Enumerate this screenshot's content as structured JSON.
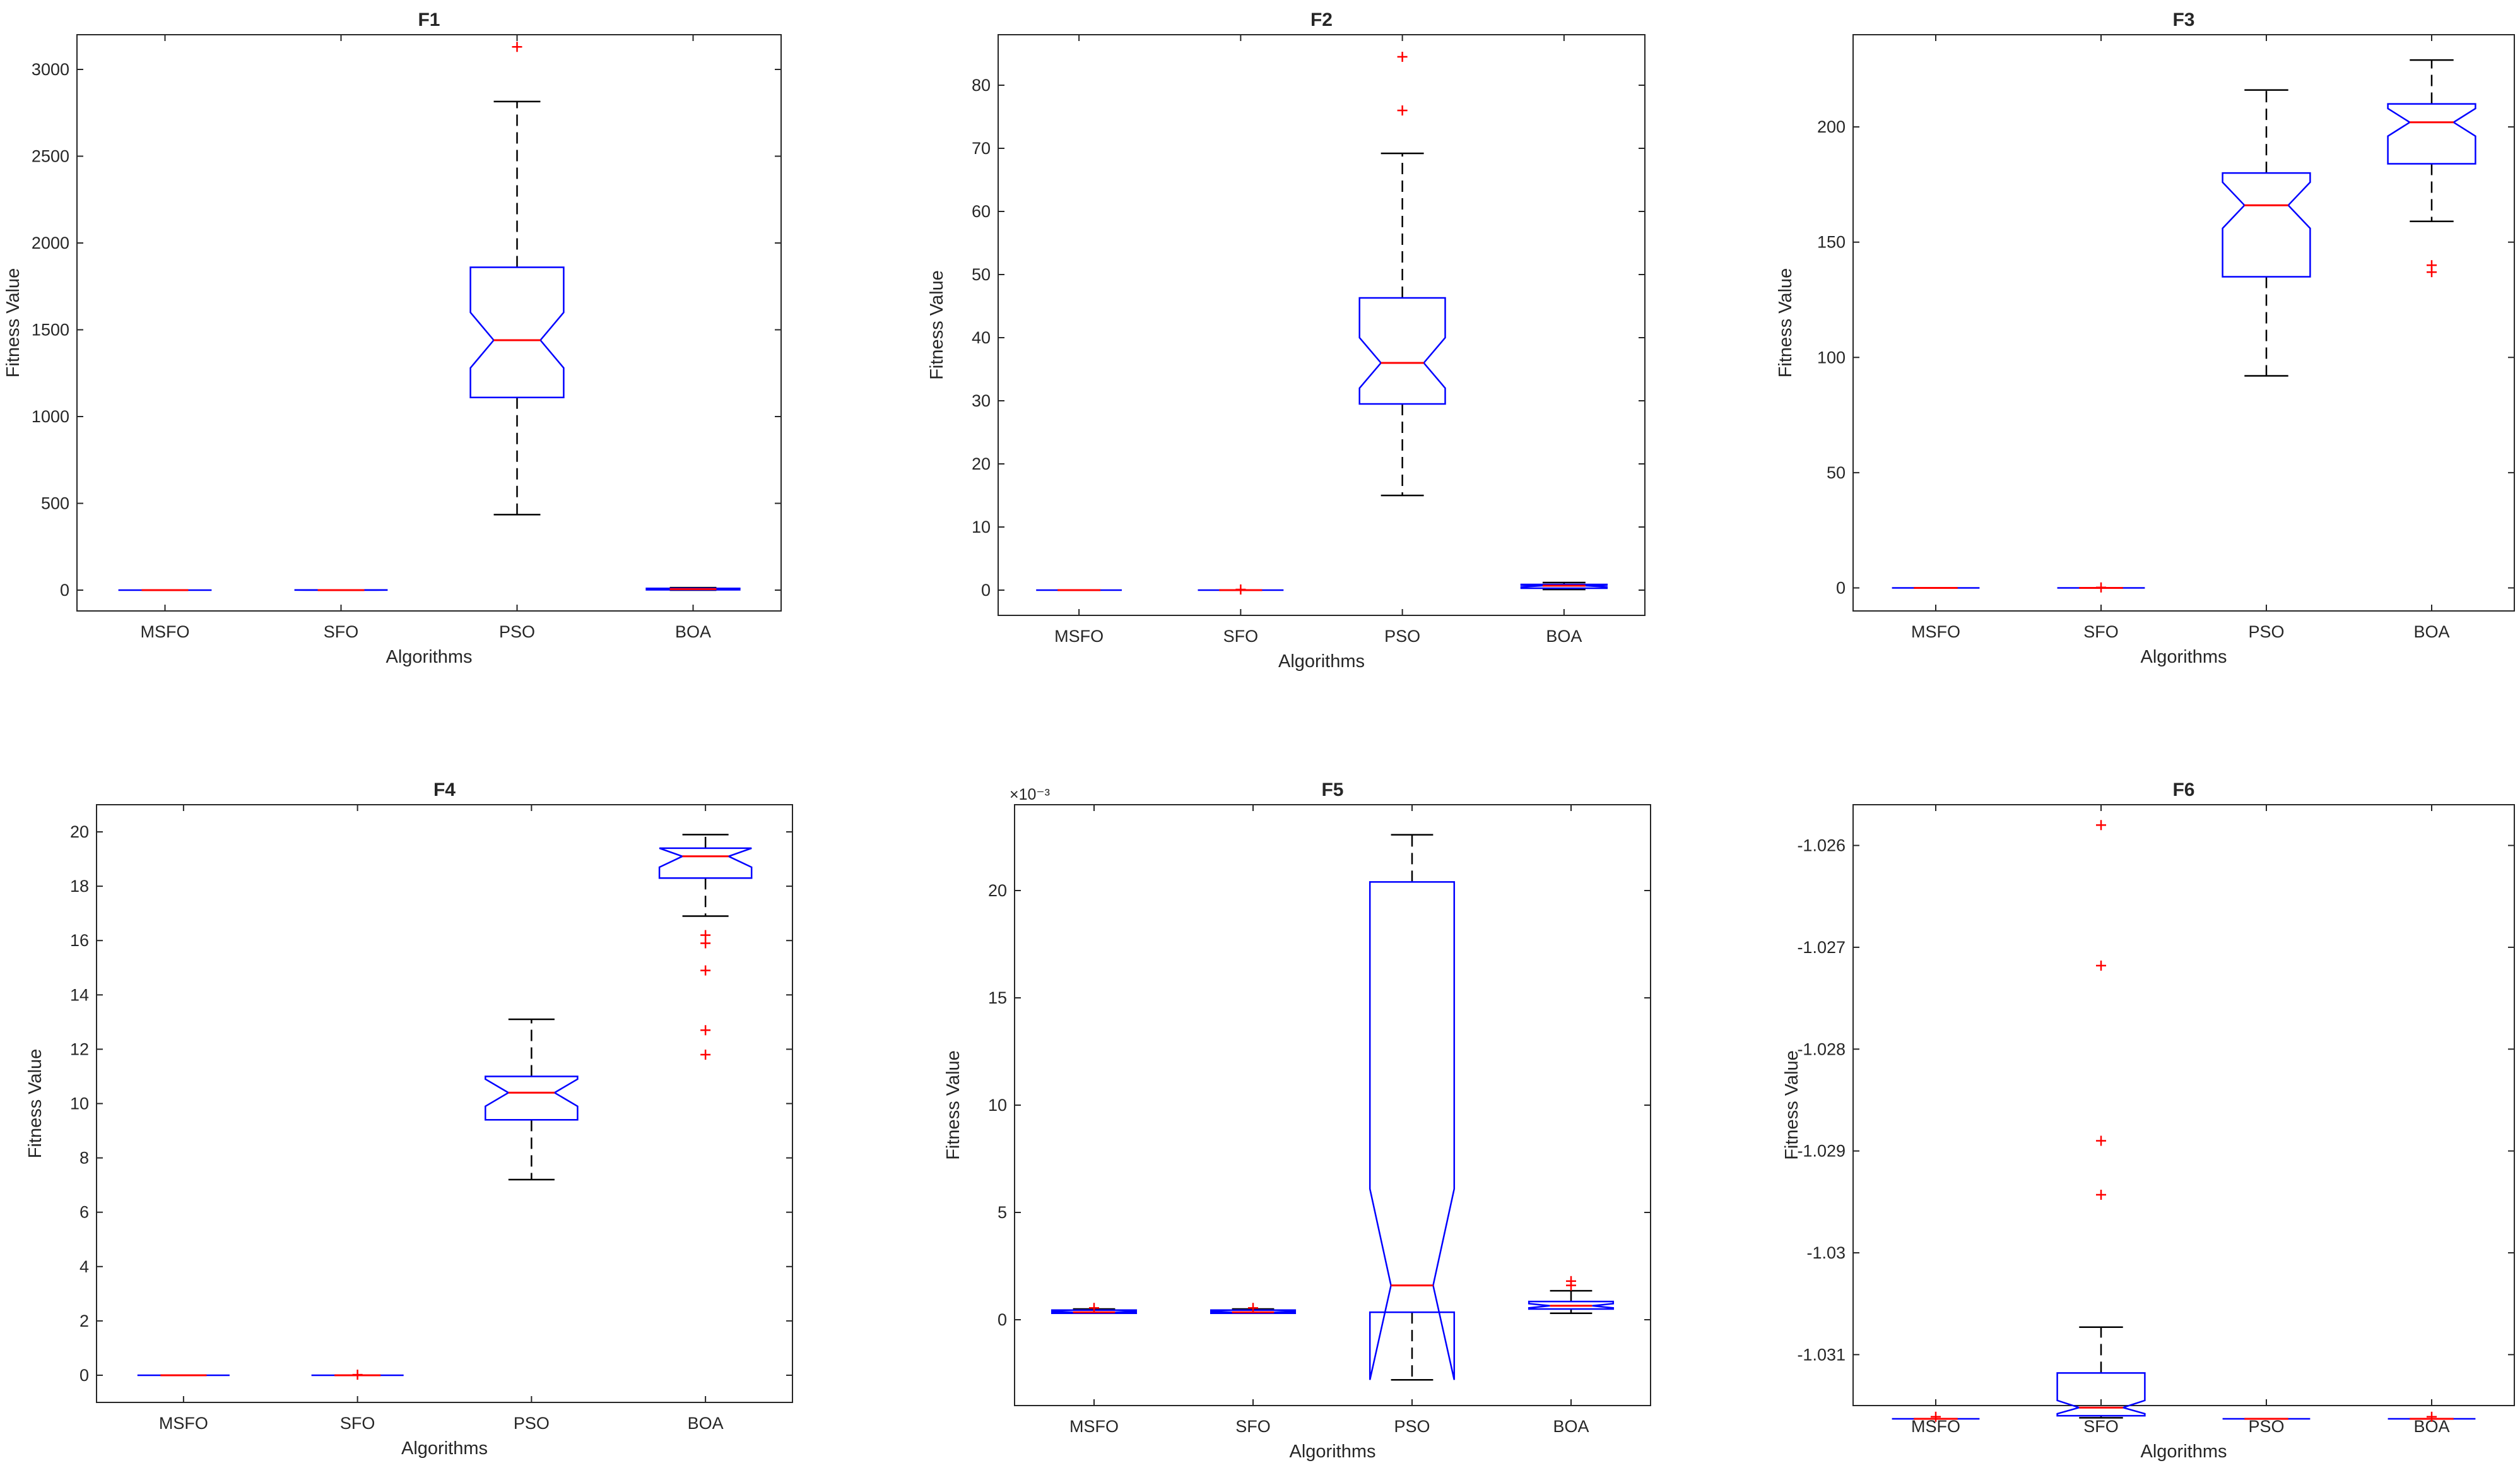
{
  "figure": {
    "xlabel": "Algorithms",
    "ylabel": "Fitness Value",
    "categories": [
      "MSFO",
      "SFO",
      "PSO",
      "BOA"
    ],
    "colors": {
      "box": "#0000ff",
      "median": "#ff0000",
      "whisker": "#000000",
      "outlier": "#ff0000",
      "axis": "#262626"
    }
  },
  "chart_data": [
    {
      "type": "boxplot",
      "title": "F1",
      "xlabel": "Algorithms",
      "ylabel": "Fitness Value",
      "categories": [
        "MSFO",
        "SFO",
        "PSO",
        "BOA"
      ],
      "ylim": [
        -120,
        3200
      ],
      "yticks": [
        0,
        500,
        1000,
        1500,
        2000,
        2500,
        3000
      ],
      "exponent": "",
      "boxes": [
        {
          "name": "MSFO",
          "q1": 0,
          "median": 0,
          "q3": 0,
          "whisker_low": 0,
          "whisker_high": 0,
          "notch_low": 0,
          "notch_high": 0,
          "outliers": []
        },
        {
          "name": "SFO",
          "q1": 0,
          "median": 0,
          "q3": 1,
          "whisker_low": 0,
          "whisker_high": 1,
          "notch_low": 0,
          "notch_high": 1,
          "outliers": []
        },
        {
          "name": "PSO",
          "q1": 1110,
          "median": 1440,
          "q3": 1860,
          "whisker_low": 435,
          "whisker_high": 2815,
          "notch_low": 1280,
          "notch_high": 1600,
          "outliers": [
            3130
          ]
        },
        {
          "name": "BOA",
          "q1": 2,
          "median": 6,
          "q3": 10,
          "whisker_low": 0,
          "whisker_high": 14,
          "notch_low": 4,
          "notch_high": 8,
          "outliers": []
        }
      ]
    },
    {
      "type": "boxplot",
      "title": "F2",
      "xlabel": "Algorithms",
      "ylabel": "Fitness Value",
      "categories": [
        "MSFO",
        "SFO",
        "PSO",
        "BOA"
      ],
      "ylim": [
        -4,
        88
      ],
      "yticks": [
        0,
        10,
        20,
        30,
        40,
        50,
        60,
        70,
        80
      ],
      "exponent": "",
      "boxes": [
        {
          "name": "MSFO",
          "q1": 0,
          "median": 0,
          "q3": 0,
          "whisker_low": 0,
          "whisker_high": 0,
          "notch_low": 0,
          "notch_high": 0,
          "outliers": []
        },
        {
          "name": "SFO",
          "q1": 0,
          "median": 0,
          "q3": 0,
          "whisker_low": 0,
          "whisker_high": 0,
          "notch_low": 0,
          "notch_high": 0,
          "outliers": [
            0.1
          ]
        },
        {
          "name": "PSO",
          "q1": 29.5,
          "median": 36,
          "q3": 46.3,
          "whisker_low": 15,
          "whisker_high": 69.2,
          "notch_low": 32,
          "notch_high": 40,
          "outliers": [
            76,
            84.5
          ]
        },
        {
          "name": "BOA",
          "q1": 0.3,
          "median": 0.7,
          "q3": 0.9,
          "whisker_low": 0.1,
          "whisker_high": 1.2,
          "notch_low": 0.5,
          "notch_high": 0.8,
          "outliers": []
        }
      ]
    },
    {
      "type": "boxplot",
      "title": "F3",
      "xlabel": "Algorithms",
      "ylabel": "Fitness Value",
      "categories": [
        "MSFO",
        "SFO",
        "PSO",
        "BOA"
      ],
      "ylim": [
        -10,
        240
      ],
      "yticks": [
        0,
        50,
        100,
        150,
        200
      ],
      "exponent": "",
      "boxes": [
        {
          "name": "MSFO",
          "q1": 0,
          "median": 0,
          "q3": 0,
          "whisker_low": 0,
          "whisker_high": 0,
          "notch_low": 0,
          "notch_high": 0,
          "outliers": []
        },
        {
          "name": "SFO",
          "q1": 0,
          "median": 0,
          "q3": 0,
          "whisker_low": 0,
          "whisker_high": 0,
          "notch_low": 0,
          "notch_high": 0,
          "outliers": [
            0.2
          ]
        },
        {
          "name": "PSO",
          "q1": 135,
          "median": 166,
          "q3": 180,
          "whisker_low": 92,
          "whisker_high": 216,
          "notch_low": 156,
          "notch_high": 176,
          "outliers": []
        },
        {
          "name": "BOA",
          "q1": 184,
          "median": 202,
          "q3": 210,
          "whisker_low": 159,
          "whisker_high": 229,
          "notch_low": 196,
          "notch_high": 208,
          "outliers": [
            137,
            140
          ]
        }
      ]
    },
    {
      "type": "boxplot",
      "title": "F4",
      "xlabel": "Algorithms",
      "ylabel": "Fitness Value",
      "categories": [
        "MSFO",
        "SFO",
        "PSO",
        "BOA"
      ],
      "ylim": [
        -1,
        21
      ],
      "yticks": [
        0,
        2,
        4,
        6,
        8,
        10,
        12,
        14,
        16,
        18,
        20
      ],
      "exponent": "",
      "boxes": [
        {
          "name": "MSFO",
          "q1": 0,
          "median": 0,
          "q3": 0,
          "whisker_low": 0,
          "whisker_high": 0,
          "notch_low": 0,
          "notch_high": 0,
          "outliers": []
        },
        {
          "name": "SFO",
          "q1": 0,
          "median": 0,
          "q3": 0,
          "whisker_low": 0,
          "whisker_high": 0,
          "notch_low": 0,
          "notch_high": 0,
          "outliers": [
            0.02
          ]
        },
        {
          "name": "PSO",
          "q1": 9.4,
          "median": 10.4,
          "q3": 11,
          "whisker_low": 7.2,
          "whisker_high": 13.1,
          "notch_low": 9.9,
          "notch_high": 10.9,
          "outliers": []
        },
        {
          "name": "BOA",
          "q1": 18.3,
          "median": 19.1,
          "q3": 19.4,
          "whisker_low": 16.9,
          "whisker_high": 19.9,
          "notch_low": 18.7,
          "notch_high": 19.4,
          "outliers": [
            11.8,
            12.7,
            14.9,
            15.9,
            16.2
          ]
        }
      ]
    },
    {
      "type": "boxplot",
      "title": "F5",
      "xlabel": "Algorithms",
      "ylabel": "Fitness Value",
      "categories": [
        "MSFO",
        "SFO",
        "PSO",
        "BOA"
      ],
      "ylim": [
        -4,
        24
      ],
      "yticks": [
        0,
        5,
        10,
        15,
        20
      ],
      "exponent": "×10⁻³",
      "boxes": [
        {
          "name": "MSFO",
          "q1": 0.3,
          "median": 0.35,
          "q3": 0.45,
          "whisker_low": 0.3,
          "whisker_high": 0.5,
          "notch_low": 0.33,
          "notch_high": 0.4,
          "outliers": [
            0.55
          ]
        },
        {
          "name": "SFO",
          "q1": 0.3,
          "median": 0.35,
          "q3": 0.45,
          "whisker_low": 0.3,
          "whisker_high": 0.5,
          "notch_low": 0.33,
          "notch_high": 0.4,
          "outliers": [
            0.55
          ]
        },
        {
          "name": "PSO",
          "q1": 0.35,
          "median": 1.6,
          "q3": 20.4,
          "whisker_low": -2.8,
          "whisker_high": 22.6,
          "notch_low": -2.8,
          "notch_high": 6.1,
          "outliers": []
        },
        {
          "name": "BOA",
          "q1": 0.5,
          "median": 0.65,
          "q3": 0.85,
          "whisker_low": 0.3,
          "whisker_high": 1.35,
          "notch_low": 0.55,
          "notch_high": 0.75,
          "outliers": [
            1.6,
            1.8
          ]
        }
      ]
    },
    {
      "type": "boxplot",
      "title": "F6",
      "xlabel": "Algorithms",
      "ylabel": "Fitness Value",
      "categories": [
        "MSFO",
        "SFO",
        "PSO",
        "BOA"
      ],
      "ylim": [
        -1.0315,
        -1.0256
      ],
      "yticks": [
        -1.031,
        -1.03,
        -1.029,
        -1.028,
        -1.027,
        -1.026
      ],
      "exponent": "",
      "boxes": [
        {
          "name": "MSFO",
          "q1": -1.03163,
          "median": -1.03163,
          "q3": -1.03163,
          "whisker_low": -1.03163,
          "whisker_high": -1.03163,
          "notch_low": -1.03163,
          "notch_high": -1.03163,
          "outliers": [
            -1.03161
          ]
        },
        {
          "name": "SFO",
          "q1": -1.0316,
          "median": -1.03152,
          "q3": -1.03118,
          "whisker_low": -1.03162,
          "whisker_high": -1.03073,
          "notch_low": -1.03158,
          "notch_high": -1.03145,
          "outliers": [
            -1.02943,
            -1.0289,
            -1.02718,
            -1.0258
          ]
        },
        {
          "name": "PSO",
          "q1": -1.03163,
          "median": -1.03163,
          "q3": -1.03163,
          "whisker_low": -1.03163,
          "whisker_high": -1.03163,
          "notch_low": -1.03163,
          "notch_high": -1.03163,
          "outliers": []
        },
        {
          "name": "BOA",
          "q1": -1.03163,
          "median": -1.03163,
          "q3": -1.03163,
          "whisker_low": -1.03163,
          "whisker_high": -1.03163,
          "notch_low": -1.03163,
          "notch_high": -1.03163,
          "outliers": [
            -1.03161
          ]
        }
      ]
    }
  ]
}
